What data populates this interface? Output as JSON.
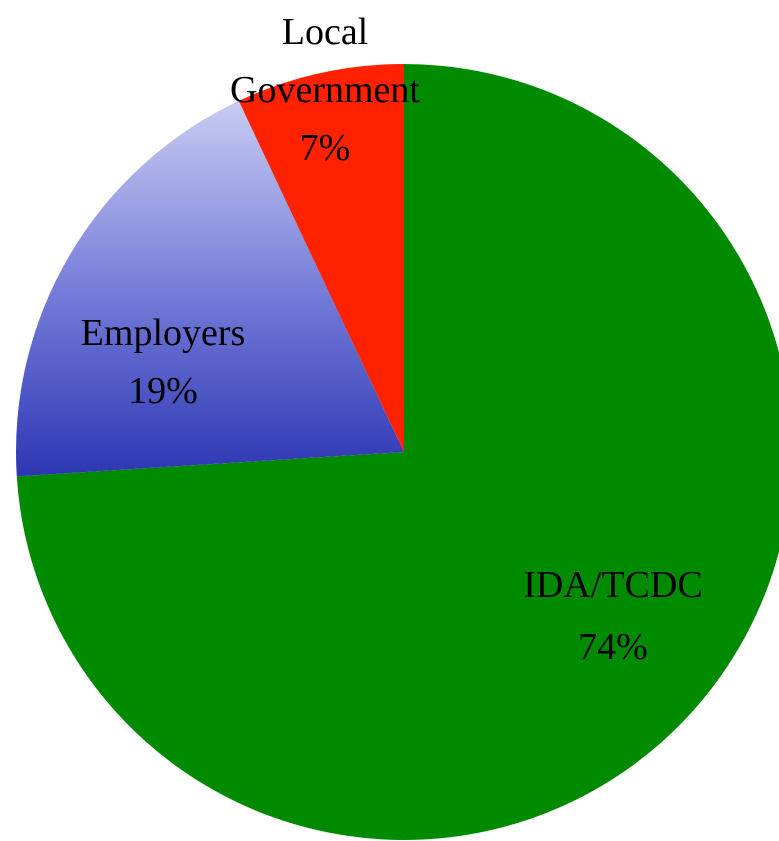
{
  "chart_data": {
    "type": "pie",
    "start_angle": "12 o'clock",
    "direction": "clockwise",
    "slices": [
      {
        "label": "IDA/TCDC",
        "percent_label": "74%",
        "value": 74,
        "color": "#008a00"
      },
      {
        "label": "Employers",
        "percent_label": "19%",
        "value": 19,
        "color": "#4a55cc"
      },
      {
        "label": "Local Government",
        "percent_label": "7%",
        "value": 7,
        "color": "#ff2200"
      }
    ]
  }
}
